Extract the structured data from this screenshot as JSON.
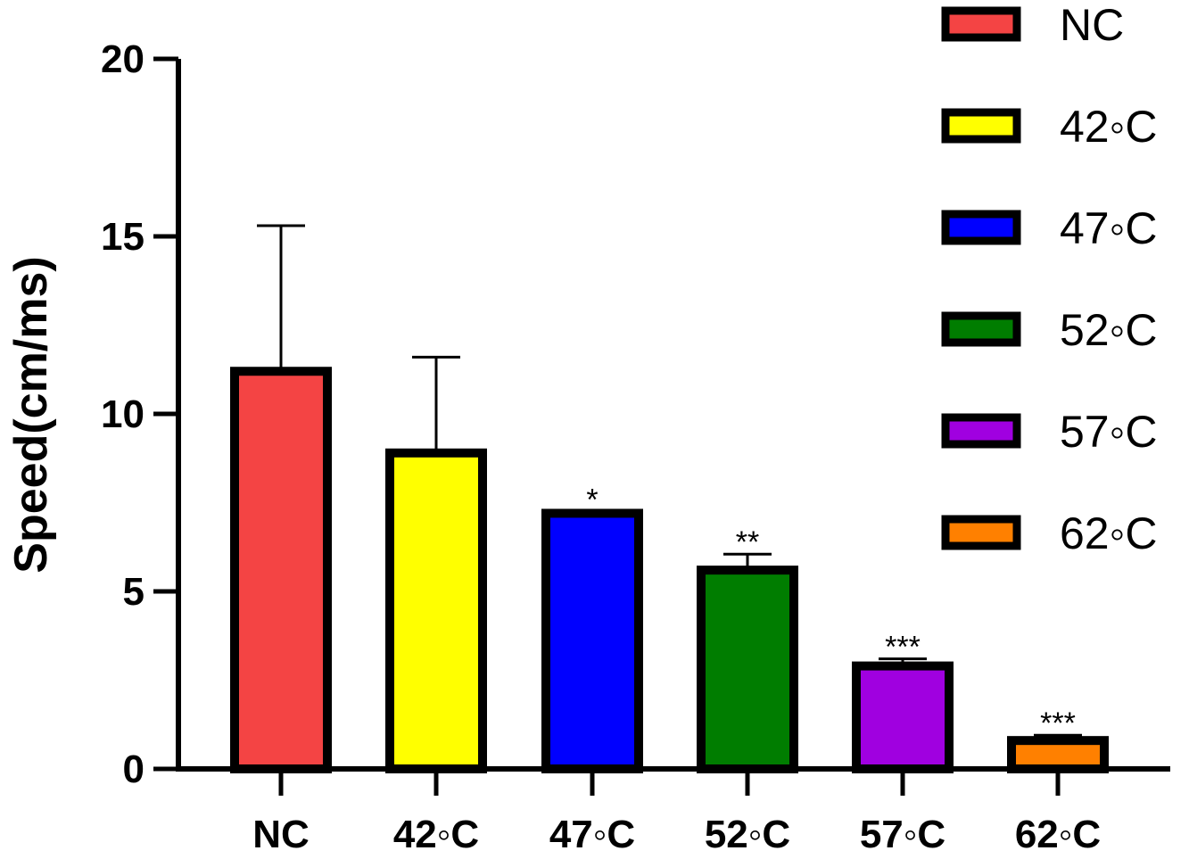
{
  "chart_data": {
    "type": "bar",
    "categories": [
      "NC",
      "42◦C",
      "47◦C",
      "52◦C",
      "57◦C",
      "62◦C"
    ],
    "values": [
      11.2,
      8.9,
      7.2,
      5.6,
      2.9,
      0.8
    ],
    "errors": [
      4.1,
      2.7,
      0.05,
      0.45,
      0.2,
      0.15
    ],
    "significance": [
      "",
      "",
      "*",
      "**",
      "***",
      "***"
    ],
    "colors": [
      "#f44444",
      "#ffff00",
      "#0000ff",
      "#007d00",
      "#a000e0",
      "#ff8000"
    ],
    "legend": [
      "NC",
      "42◦C",
      "47◦C",
      "52◦C",
      "57◦C",
      "62◦C"
    ],
    "legend_position": "right",
    "xlabel": "",
    "ylabel": "Speed(cm/ms)",
    "ylim": [
      0,
      20
    ],
    "yticks": [
      0,
      5,
      10,
      15,
      20
    ],
    "grid": false
  }
}
